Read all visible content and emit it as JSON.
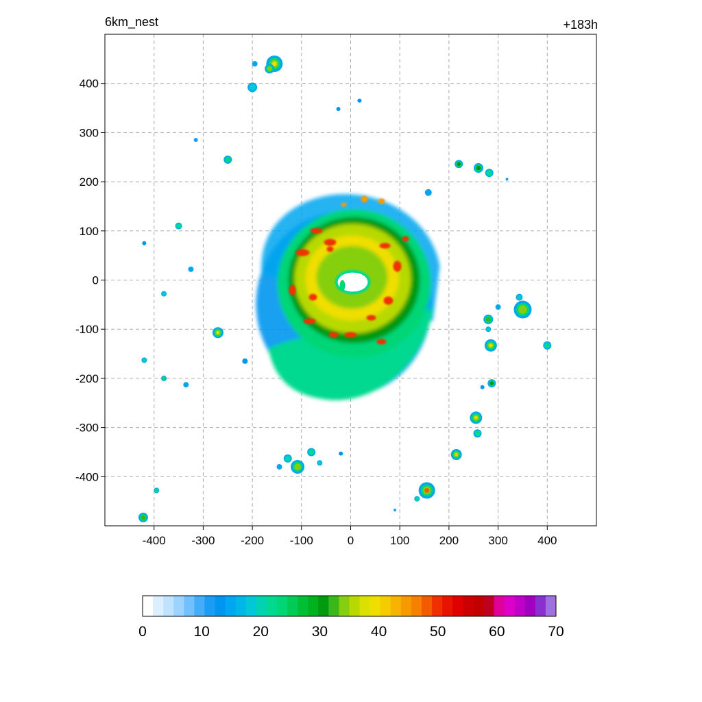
{
  "header": {
    "domain_label": "6km_nest",
    "forecast_hour": "+183h"
  },
  "chart_data": {
    "type": "heatmap",
    "xlim": [
      -500,
      500
    ],
    "ylim": [
      -500,
      500
    ],
    "x_ticks": [
      -400,
      -300,
      -200,
      -100,
      0,
      100,
      200,
      300,
      400
    ],
    "y_ticks": [
      400,
      300,
      200,
      100,
      0,
      -100,
      -200,
      -300,
      -400
    ],
    "x_tick_labels": [
      "-400",
      "-300",
      "-200",
      "-100",
      "0",
      "100",
      "200",
      "300",
      "400"
    ],
    "y_tick_labels": [
      "400",
      "300",
      "200",
      "100",
      "0",
      "-100",
      "-200",
      "-300",
      "-400"
    ],
    "grid": "dashed",
    "colorbar": {
      "range": [
        0,
        70
      ],
      "tick_values": [
        0,
        10,
        20,
        30,
        40,
        50,
        60,
        70
      ],
      "tick_labels": [
        "0",
        "10",
        "20",
        "30",
        "40",
        "50",
        "60",
        "70"
      ],
      "colors": [
        "#ffffff",
        "#dcefff",
        "#bfe3ff",
        "#9dd3ff",
        "#72c0ff",
        "#45acf8",
        "#1b9df5",
        "#0096f0",
        "#00a6f0",
        "#00b6e8",
        "#00c8d6",
        "#00d3b0",
        "#00d98f",
        "#00d676",
        "#00cc55",
        "#00bf35",
        "#00b31e",
        "#009a10",
        "#3ab81a",
        "#86cf10",
        "#b8d900",
        "#dce000",
        "#f0de00",
        "#f4cc00",
        "#f6b300",
        "#f69a00",
        "#f68000",
        "#f45a00",
        "#f03000",
        "#e81200",
        "#e00000",
        "#cc0000",
        "#c20000",
        "#c00020",
        "#e0009a",
        "#dc00c8",
        "#c000c8",
        "#a000c0",
        "#8a30d0",
        "#a070e0"
      ]
    },
    "storm": {
      "center": [
        0,
        0
      ],
      "eye_radius_km": 25,
      "max_reflectivity": 50
    },
    "cells": [
      {
        "x": -155,
        "y": 440,
        "r": 12,
        "v": 40
      },
      {
        "x": -165,
        "y": 430,
        "r": 7,
        "v": 35
      },
      {
        "x": -195,
        "y": 440,
        "r": 4,
        "v": 15
      },
      {
        "x": -200,
        "y": 392,
        "r": 7,
        "v": 18
      },
      {
        "x": -25,
        "y": 348,
        "r": 3,
        "v": 12
      },
      {
        "x": 18,
        "y": 365,
        "r": 3,
        "v": 12
      },
      {
        "x": -315,
        "y": 285,
        "r": 3,
        "v": 10
      },
      {
        "x": -250,
        "y": 245,
        "r": 6,
        "v": 24
      },
      {
        "x": 220,
        "y": 236,
        "r": 6,
        "v": 30
      },
      {
        "x": 260,
        "y": 228,
        "r": 7,
        "v": 30
      },
      {
        "x": 282,
        "y": 218,
        "r": 6,
        "v": 22
      },
      {
        "x": 318,
        "y": 205,
        "r": 2,
        "v": 10
      },
      {
        "x": 158,
        "y": 178,
        "r": 5,
        "v": 14
      },
      {
        "x": -350,
        "y": 110,
        "r": 5,
        "v": 22
      },
      {
        "x": -420,
        "y": 75,
        "r": 3,
        "v": 12
      },
      {
        "x": -325,
        "y": 22,
        "r": 4,
        "v": 15
      },
      {
        "x": -380,
        "y": -28,
        "r": 4,
        "v": 18
      },
      {
        "x": -270,
        "y": -107,
        "r": 8,
        "v": 38
      },
      {
        "x": -420,
        "y": -163,
        "r": 4,
        "v": 20
      },
      {
        "x": -215,
        "y": -165,
        "r": 4,
        "v": 12
      },
      {
        "x": -380,
        "y": -200,
        "r": 4,
        "v": 25
      },
      {
        "x": -335,
        "y": -213,
        "r": 4,
        "v": 14
      },
      {
        "x": 350,
        "y": -60,
        "r": 13,
        "v": 35
      },
      {
        "x": 343,
        "y": -35,
        "r": 5,
        "v": 18
      },
      {
        "x": 300,
        "y": -55,
        "r": 4,
        "v": 14
      },
      {
        "x": 280,
        "y": -80,
        "r": 7,
        "v": 32
      },
      {
        "x": 280,
        "y": -100,
        "r": 4,
        "v": 18
      },
      {
        "x": 285,
        "y": -133,
        "r": 9,
        "v": 38
      },
      {
        "x": 400,
        "y": -133,
        "r": 6,
        "v": 22
      },
      {
        "x": 287,
        "y": -210,
        "r": 6,
        "v": 30
      },
      {
        "x": 268,
        "y": -218,
        "r": 3,
        "v": 12
      },
      {
        "x": 255,
        "y": -280,
        "r": 9,
        "v": 38
      },
      {
        "x": 258,
        "y": -312,
        "r": 6,
        "v": 22
      },
      {
        "x": 215,
        "y": -355,
        "r": 8,
        "v": 42
      },
      {
        "x": 155,
        "y": -428,
        "r": 12,
        "v": 48
      },
      {
        "x": 135,
        "y": -445,
        "r": 4,
        "v": 20
      },
      {
        "x": -80,
        "y": -350,
        "r": 6,
        "v": 22
      },
      {
        "x": -20,
        "y": -353,
        "r": 3,
        "v": 12
      },
      {
        "x": -108,
        "y": -380,
        "r": 10,
        "v": 35
      },
      {
        "x": -128,
        "y": -363,
        "r": 6,
        "v": 20
      },
      {
        "x": -145,
        "y": -380,
        "r": 4,
        "v": 14
      },
      {
        "x": -63,
        "y": -372,
        "r": 4,
        "v": 18
      },
      {
        "x": -395,
        "y": -428,
        "r": 4,
        "v": 22
      },
      {
        "x": -422,
        "y": -483,
        "r": 7,
        "v": 32
      },
      {
        "x": 90,
        "y": -468,
        "r": 2,
        "v": 10
      }
    ]
  }
}
